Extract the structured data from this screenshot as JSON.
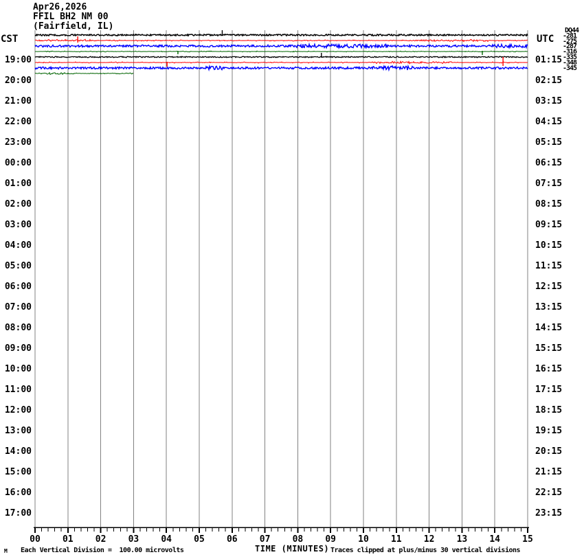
{
  "header": {
    "date": "Apr26,2026",
    "station": "FFIL BH2 NM 00",
    "location": "(Fairfield, IL)"
  },
  "axes": {
    "left_corner": "CST",
    "right_corner": "UTC",
    "left_times": [
      "19:00",
      "20:00",
      "21:00",
      "22:00",
      "23:00",
      "00:00",
      "01:00",
      "02:00",
      "03:00",
      "04:00",
      "05:00",
      "06:00",
      "07:00",
      "08:00",
      "09:00",
      "10:00",
      "11:00",
      "12:00",
      "13:00",
      "14:00",
      "15:00",
      "16:00",
      "17:00"
    ],
    "right_times": [
      "01:15",
      "02:15",
      "03:15",
      "04:15",
      "05:15",
      "06:15",
      "07:15",
      "08:15",
      "09:15",
      "10:15",
      "11:15",
      "12:15",
      "13:15",
      "14:15",
      "15:15",
      "16:15",
      "17:15",
      "18:15",
      "19:15",
      "20:15",
      "21:15",
      "22:15",
      "23:15"
    ],
    "x_ticks": [
      "00",
      "01",
      "02",
      "03",
      "04",
      "05",
      "06",
      "07",
      "08",
      "09",
      "10",
      "11",
      "12",
      "13",
      "14",
      "15"
    ],
    "x_axis_title": "TIME (MINUTES)"
  },
  "status_column": {
    "header": "DQ44",
    "values": [
      "-281",
      "-275",
      "-287",
      "-316",
      "-335",
      "-348",
      "-345"
    ]
  },
  "footer": {
    "scale_note": "Each Vertical Division =  100.00 microvolts",
    "clip_note": "Traces clipped at plus/minus 30 vertical divisions",
    "watermark": "M"
  },
  "colors": {
    "grid": "#808080",
    "axis": "#000000",
    "background": "#ffffff"
  },
  "chart_data": {
    "type": "line",
    "title": "FFIL BH2 NM 00 (Fairfield, IL) helicorder",
    "xlabel": "TIME (MINUTES)",
    "x_range_minutes": [
      0,
      15
    ],
    "minor_ticks_per_minute": 5,
    "vertical_division_microvolts": 100.0,
    "clip_divisions": 30,
    "grid": true,
    "channels": [
      {
        "name": "channel-1",
        "color": "#000000"
      },
      {
        "name": "channel-2",
        "color": "#ff0000"
      },
      {
        "name": "channel-3",
        "color": "#0000ff"
      },
      {
        "name": "channel-4",
        "color": "#006400"
      }
    ],
    "rows": [
      {
        "traces": [
          {
            "ch": 0,
            "lane": 0,
            "start_min": 0,
            "end_min": 15,
            "density": 1.0,
            "amp": 1.1,
            "width": 1.5,
            "spikes": [
              {
                "min": 5.7,
                "up": 7,
                "down": 1
              }
            ],
            "bursts": []
          },
          {
            "ch": 1,
            "lane": 1,
            "start_min": 0,
            "end_min": 15,
            "density": 0.35,
            "amp": 0.9,
            "width": 1.0,
            "spikes": [
              {
                "min": 1.3,
                "up": 6,
                "down": 3
              }
            ],
            "bursts": [
              {
                "from": 0.0,
                "to": 1.7,
                "amp": 0.8
              },
              {
                "from": 11.3,
                "to": 13.8,
                "amp": 0.6
              }
            ]
          },
          {
            "ch": 2,
            "lane": 2,
            "start_min": 0,
            "end_min": 15,
            "density": 0.95,
            "amp": 1.5,
            "width": 1.4,
            "spikes": [],
            "bursts": [
              {
                "from": 7.9,
                "to": 10.7,
                "amp": 1.2
              },
              {
                "from": 13.9,
                "to": 15.0,
                "amp": 1.0
              }
            ]
          },
          {
            "ch": 3,
            "lane": 3,
            "start_min": 0,
            "end_min": 15,
            "density": 0.3,
            "amp": 0.8,
            "width": 1.0,
            "spikes": [
              {
                "min": 4.35,
                "up": 1,
                "down": 4
              },
              {
                "min": 13.62,
                "up": 1,
                "down": 5
              }
            ],
            "bursts": []
          }
        ]
      },
      {
        "traces": [
          {
            "ch": 0,
            "lane": 0,
            "start_min": 0,
            "end_min": 15,
            "density": 1.0,
            "amp": 0.8,
            "width": 1.3,
            "spikes": [
              {
                "min": 8.72,
                "up": 6,
                "down": 1
              }
            ],
            "bursts": []
          },
          {
            "ch": 1,
            "lane": 1,
            "start_min": 0,
            "end_min": 15,
            "density": 0.3,
            "amp": 0.9,
            "width": 1.0,
            "spikes": [
              {
                "min": 4.02,
                "up": 1,
                "down": 6
              },
              {
                "min": 14.25,
                "up": 8,
                "down": 5
              }
            ],
            "bursts": [
              {
                "from": 10.3,
                "to": 12.7,
                "amp": 0.9
              }
            ]
          },
          {
            "ch": 2,
            "lane": 2,
            "start_min": 0,
            "end_min": 15,
            "density": 0.95,
            "amp": 1.5,
            "width": 1.4,
            "spikes": [],
            "bursts": [
              {
                "from": 5.2,
                "to": 5.7,
                "amp": 1.2
              },
              {
                "from": 10.2,
                "to": 11.5,
                "amp": 1.5
              }
            ]
          },
          {
            "ch": 3,
            "lane": 3,
            "start_min": 0,
            "end_min": 3.0,
            "density": 0.5,
            "amp": 0.8,
            "width": 1.0,
            "spikes": [],
            "bursts": [
              {
                "from": 0.3,
                "to": 0.9,
                "amp": 0.8
              }
            ]
          }
        ]
      }
    ]
  }
}
